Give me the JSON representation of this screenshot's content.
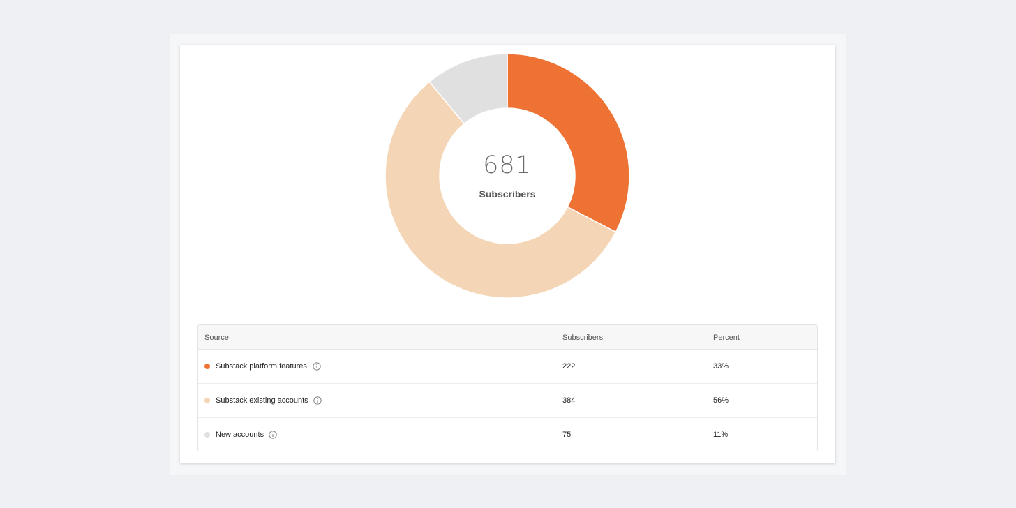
{
  "colors": {
    "platform": "#ee7234",
    "existing": "#f4d6b6",
    "new": "#e0e0e0"
  },
  "summary": {
    "total": "681",
    "label": "Subscribers"
  },
  "table": {
    "headers": {
      "source": "Source",
      "subscribers": "Subscribers",
      "percent": "Percent"
    },
    "rows": [
      {
        "source": "Substack platform features",
        "subscribers": "222",
        "percent": "33%",
        "color": "#ee7234",
        "icon": "info-icon"
      },
      {
        "source": "Substack existing accounts",
        "subscribers": "384",
        "percent": "56%",
        "color": "#f4d6b6",
        "icon": "info-icon"
      },
      {
        "source": "New accounts",
        "subscribers": "75",
        "percent": "11%",
        "color": "#e0e0e0",
        "icon": "info-icon"
      }
    ]
  },
  "chart_data": {
    "type": "pie",
    "categories": [
      "Substack platform features",
      "Substack existing accounts",
      "New accounts"
    ],
    "values": [
      222,
      384,
      75
    ],
    "colors": [
      "#ee7234",
      "#f4d6b6",
      "#e0e0e0"
    ],
    "donut": true
  }
}
